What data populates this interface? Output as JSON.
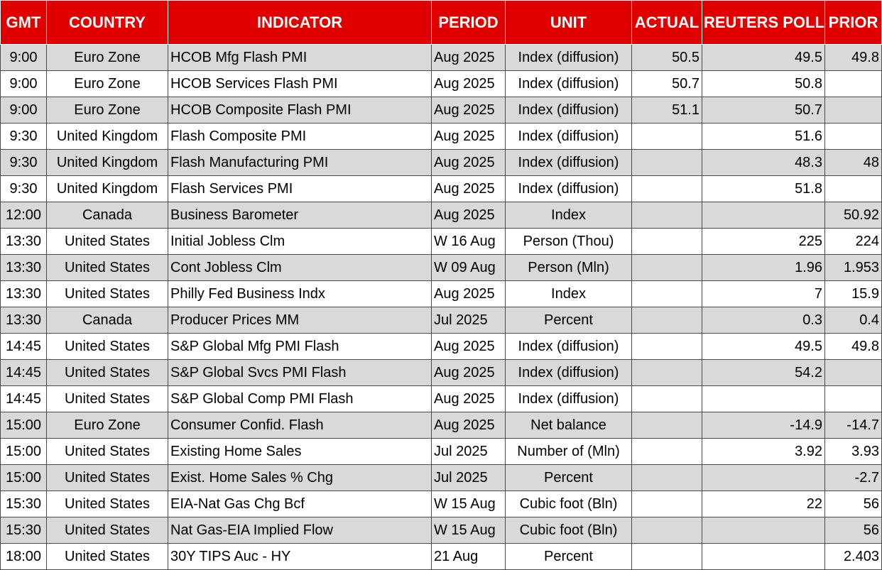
{
  "headers": {
    "gmt": "GMT",
    "country": "COUNTRY",
    "indicator": "INDICATOR",
    "period": "PERIOD",
    "unit": "UNIT",
    "actual": "ACTUAL",
    "poll": "REUTERS POLL",
    "prior": "PRIOR"
  },
  "colors": {
    "header_bg": "#e00000",
    "header_text": "#ffffff",
    "row_alt_bg": "#d9d9d9",
    "row_bg": "#ffffff"
  },
  "rows": [
    {
      "gmt": "9:00",
      "country": "Euro Zone",
      "indicator": "HCOB Mfg Flash PMI",
      "period": "Aug 2025",
      "unit": "Index (diffusion)",
      "actual": "50.5",
      "poll": "49.5",
      "prior": "49.8"
    },
    {
      "gmt": "9:00",
      "country": "Euro Zone",
      "indicator": "HCOB Services Flash PMI",
      "period": "Aug 2025",
      "unit": "Index (diffusion)",
      "actual": "50.7",
      "poll": "50.8",
      "prior": ""
    },
    {
      "gmt": "9:00",
      "country": "Euro Zone",
      "indicator": "HCOB Composite Flash PMI",
      "period": "Aug 2025",
      "unit": "Index (diffusion)",
      "actual": "51.1",
      "poll": "50.7",
      "prior": ""
    },
    {
      "gmt": "9:30",
      "country": "United Kingdom",
      "indicator": "Flash Composite PMI",
      "period": "Aug 2025",
      "unit": "Index (diffusion)",
      "actual": "",
      "poll": "51.6",
      "prior": ""
    },
    {
      "gmt": "9:30",
      "country": "United Kingdom",
      "indicator": "Flash Manufacturing PMI",
      "period": "Aug 2025",
      "unit": "Index (diffusion)",
      "actual": "",
      "poll": "48.3",
      "prior": "48"
    },
    {
      "gmt": "9:30",
      "country": "United Kingdom",
      "indicator": "Flash Services PMI",
      "period": "Aug 2025",
      "unit": "Index (diffusion)",
      "actual": "",
      "poll": "51.8",
      "prior": ""
    },
    {
      "gmt": "12:00",
      "country": "Canada",
      "indicator": "Business Barometer",
      "period": "Aug 2025",
      "unit": "Index",
      "actual": "",
      "poll": "",
      "prior": "50.92"
    },
    {
      "gmt": "13:30",
      "country": "United States",
      "indicator": "Initial Jobless Clm",
      "period": "W 16 Aug",
      "unit": "Person (Thou)",
      "actual": "",
      "poll": "225",
      "prior": "224"
    },
    {
      "gmt": "13:30",
      "country": "United States",
      "indicator": "Cont Jobless Clm",
      "period": "W 09 Aug",
      "unit": "Person (Mln)",
      "actual": "",
      "poll": "1.96",
      "prior": "1.953"
    },
    {
      "gmt": "13:30",
      "country": "United States",
      "indicator": "Philly Fed Business Indx",
      "period": "Aug 2025",
      "unit": "Index",
      "actual": "",
      "poll": "7",
      "prior": "15.9"
    },
    {
      "gmt": "13:30",
      "country": "Canada",
      "indicator": "Producer Prices MM",
      "period": "Jul 2025",
      "unit": "Percent",
      "actual": "",
      "poll": "0.3",
      "prior": "0.4"
    },
    {
      "gmt": "14:45",
      "country": "United States",
      "indicator": "S&P Global Mfg PMI Flash",
      "period": "Aug 2025",
      "unit": "Index (diffusion)",
      "actual": "",
      "poll": "49.5",
      "prior": "49.8"
    },
    {
      "gmt": "14:45",
      "country": "United States",
      "indicator": "S&P Global Svcs PMI Flash",
      "period": "Aug 2025",
      "unit": "Index (diffusion)",
      "actual": "",
      "poll": "54.2",
      "prior": ""
    },
    {
      "gmt": "14:45",
      "country": "United States",
      "indicator": "S&P Global Comp PMI Flash",
      "period": "Aug 2025",
      "unit": "Index (diffusion)",
      "actual": "",
      "poll": "",
      "prior": ""
    },
    {
      "gmt": "15:00",
      "country": "Euro Zone",
      "indicator": "Consumer Confid. Flash",
      "period": "Aug 2025",
      "unit": "Net balance",
      "actual": "",
      "poll": "-14.9",
      "prior": "-14.7"
    },
    {
      "gmt": "15:00",
      "country": "United States",
      "indicator": "Existing Home Sales",
      "period": "Jul 2025",
      "unit": "Number of (Mln)",
      "actual": "",
      "poll": "3.92",
      "prior": "3.93"
    },
    {
      "gmt": "15:00",
      "country": "United States",
      "indicator": "Exist. Home Sales % Chg",
      "period": "Jul 2025",
      "unit": "Percent",
      "actual": "",
      "poll": "",
      "prior": "-2.7"
    },
    {
      "gmt": "15:30",
      "country": "United States",
      "indicator": "EIA-Nat Gas Chg Bcf",
      "period": "W 15 Aug",
      "unit": "Cubic foot (Bln)",
      "actual": "",
      "poll": "22",
      "prior": "56"
    },
    {
      "gmt": "15:30",
      "country": "United States",
      "indicator": "Nat Gas-EIA Implied Flow",
      "period": "W 15 Aug",
      "unit": "Cubic foot (Bln)",
      "actual": "",
      "poll": "",
      "prior": "56"
    },
    {
      "gmt": "18:00",
      "country": "United States",
      "indicator": "30Y TIPS Auc - HY",
      "period": "21 Aug",
      "unit": "Percent",
      "actual": "",
      "poll": "",
      "prior": "2.403"
    }
  ]
}
